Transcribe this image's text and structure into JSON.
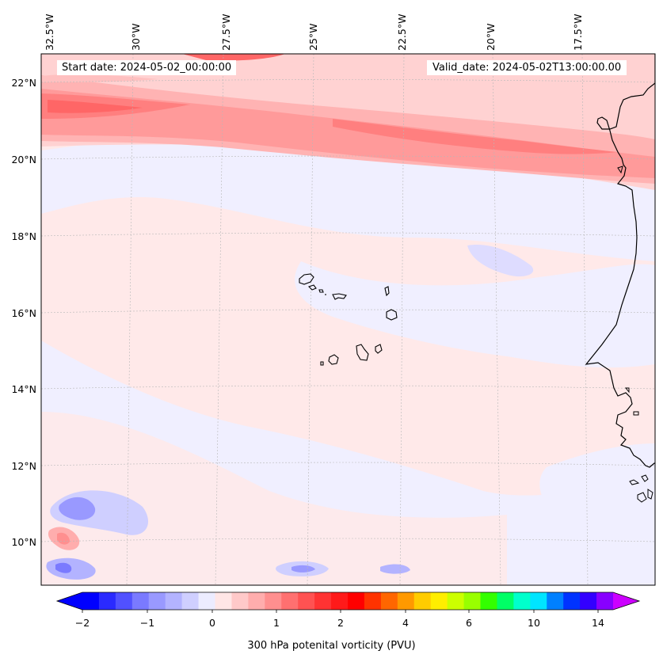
{
  "header": {
    "start_date": "Start date: 2024-05-02_00:00:00",
    "valid_date": "Valid_date: 2024-05-02T13:00:00.00"
  },
  "axes": {
    "lon_labels": [
      "32.5°W",
      "30°W",
      "27.5°W",
      "25°W",
      "22.5°W",
      "20°W",
      "17.5°W"
    ],
    "lat_labels": [
      "22°N",
      "20°N",
      "18°N",
      "16°N",
      "14°N",
      "12°N",
      "10°N"
    ]
  },
  "colorbar": {
    "title": "300 hPa potenital vorticity (PVU)",
    "tick_labels": [
      "−2",
      "−1",
      "0",
      "1",
      "2",
      "4",
      "6",
      "10",
      "14"
    ],
    "colors": [
      "#0000ff",
      "#2a2aff",
      "#5151ff",
      "#7a7aff",
      "#9999ff",
      "#b3b3ff",
      "#cfcfff",
      "#ececff",
      "#ffe6e6",
      "#ffc9c9",
      "#ffadad",
      "#ff8f8f",
      "#ff7070",
      "#ff5252",
      "#ff3333",
      "#ff1a1a",
      "#ff0000",
      "#ff3300",
      "#ff6600",
      "#ff9900",
      "#ffcc00",
      "#ffee00",
      "#ccff00",
      "#99ff00",
      "#33ff00",
      "#00ff66",
      "#00ffcc",
      "#00e5ff",
      "#0080ff",
      "#0033ff",
      "#3300ff",
      "#8800ff"
    ],
    "under_color": "#0000ff",
    "over_color": "#cc00ff"
  }
}
